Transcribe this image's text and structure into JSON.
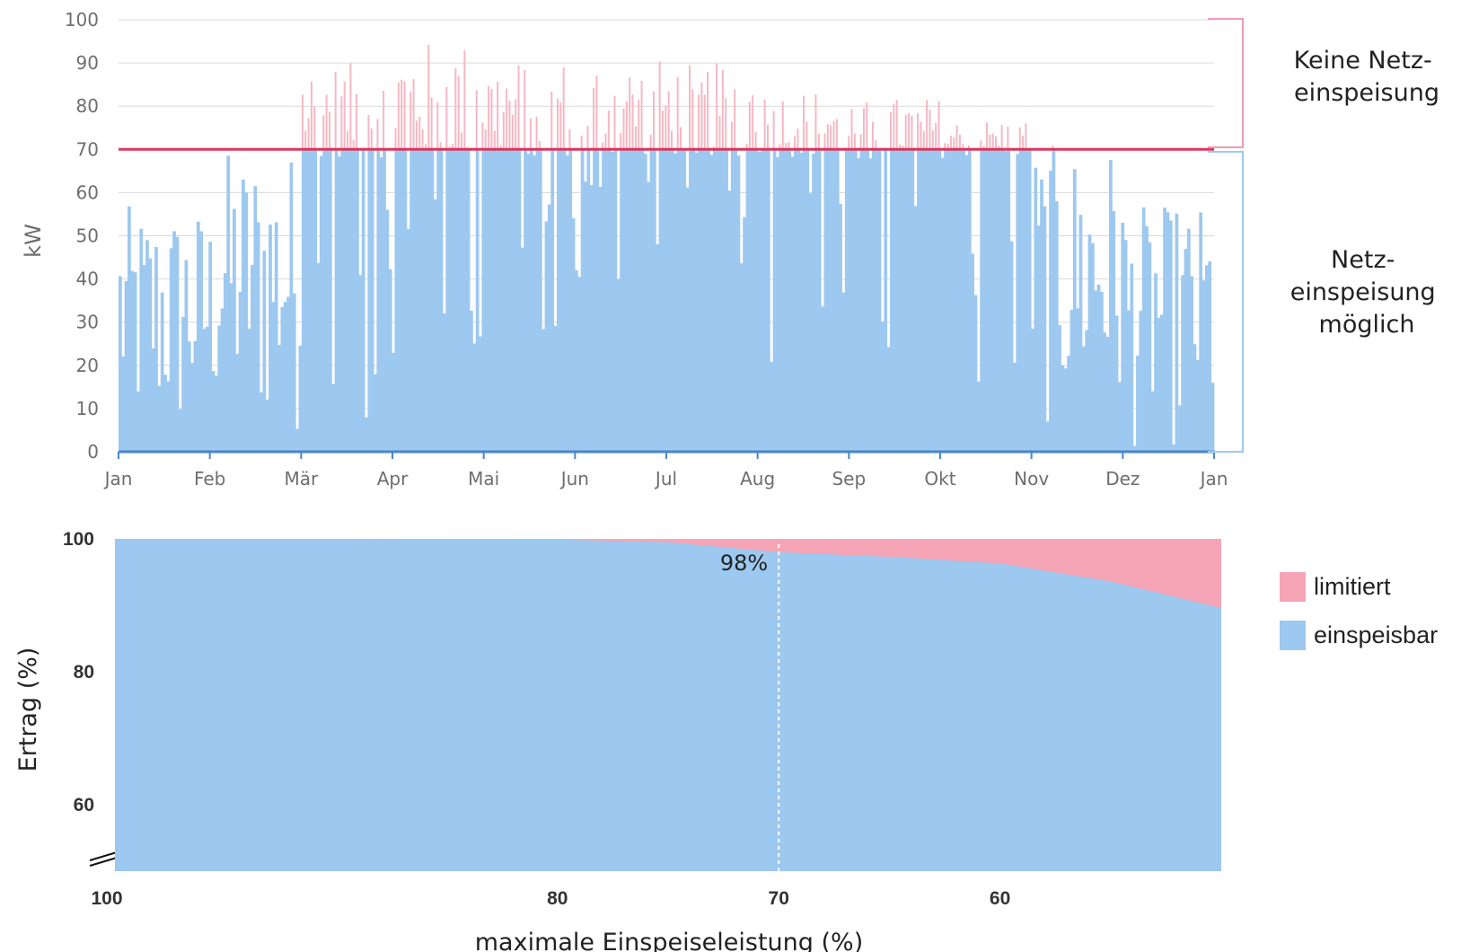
{
  "chart_data": [
    {
      "type": "bar",
      "ylabel": "kW",
      "ylim": [
        0,
        100
      ],
      "yticks": [
        0,
        10,
        20,
        30,
        40,
        50,
        60,
        70,
        80,
        90,
        100
      ],
      "xticks": [
        "Jan",
        "Feb",
        "Mär",
        "Apr",
        "Mai",
        "Jun",
        "Jul",
        "Aug",
        "Sep",
        "Okt",
        "Nov",
        "Dez",
        "Jan"
      ],
      "threshold": 70,
      "grid": true,
      "colors": {
        "einspeisbar": "#9dc8ef",
        "limitiert": "#f5b8c4",
        "threshold_line": "#d8375e",
        "bracket_top": "#f29bb0",
        "bracket_bottom": "#9dc8ef"
      },
      "annotations": [
        {
          "lines": [
            "Keine Netz-",
            "einspeisung"
          ],
          "range": [
            70,
            100
          ]
        },
        {
          "lines": [
            "Netz-",
            "einspeisung",
            "möglich"
          ],
          "range": [
            0,
            70
          ]
        }
      ],
      "monthly_peak_kW": [
        {
          "month": "Jan",
          "min": 0,
          "max": 57
        },
        {
          "month": "Feb",
          "min": 2,
          "max": 70
        },
        {
          "month": "Mär",
          "min": 2,
          "max": 90
        },
        {
          "month": "Apr",
          "min": 12,
          "max": 95
        },
        {
          "month": "Mai",
          "min": 11,
          "max": 91
        },
        {
          "month": "Jun",
          "min": 33,
          "max": 91
        },
        {
          "month": "Jul",
          "min": 25,
          "max": 90
        },
        {
          "month": "Aug",
          "min": 18,
          "max": 84
        },
        {
          "month": "Sep",
          "min": 15,
          "max": 82
        },
        {
          "month": "Okt",
          "min": 12,
          "max": 77
        },
        {
          "month": "Nov",
          "min": 4,
          "max": 71
        },
        {
          "month": "Dez",
          "min": 0,
          "max": 57
        }
      ]
    },
    {
      "type": "area",
      "xlabel": "maximale Einspeiseleistung (%)",
      "ylabel": "Ertrag (%)",
      "ylim": [
        50,
        100
      ],
      "yticks": [
        60,
        80,
        100
      ],
      "xticks": [
        100,
        80,
        70,
        60
      ],
      "xlim": [
        100,
        50
      ],
      "series": [
        {
          "name": "einspeisbar",
          "color": "#9dc8ef",
          "x": [
            100,
            90,
            80,
            75,
            70,
            65,
            60,
            55,
            50
          ],
          "values": [
            100,
            100,
            99.9,
            99.5,
            98,
            97.3,
            96.3,
            93.6,
            89.6
          ]
        },
        {
          "name": "limitiert",
          "color": "#f5a5b6",
          "x": [
            100,
            90,
            80,
            75,
            70,
            65,
            60,
            55,
            50
          ],
          "values": [
            0,
            0,
            0.1,
            0.5,
            2,
            2.7,
            3.7,
            6.4,
            10.4
          ]
        }
      ],
      "marker": {
        "x": 70,
        "label": "98%"
      },
      "legend": "right"
    }
  ]
}
